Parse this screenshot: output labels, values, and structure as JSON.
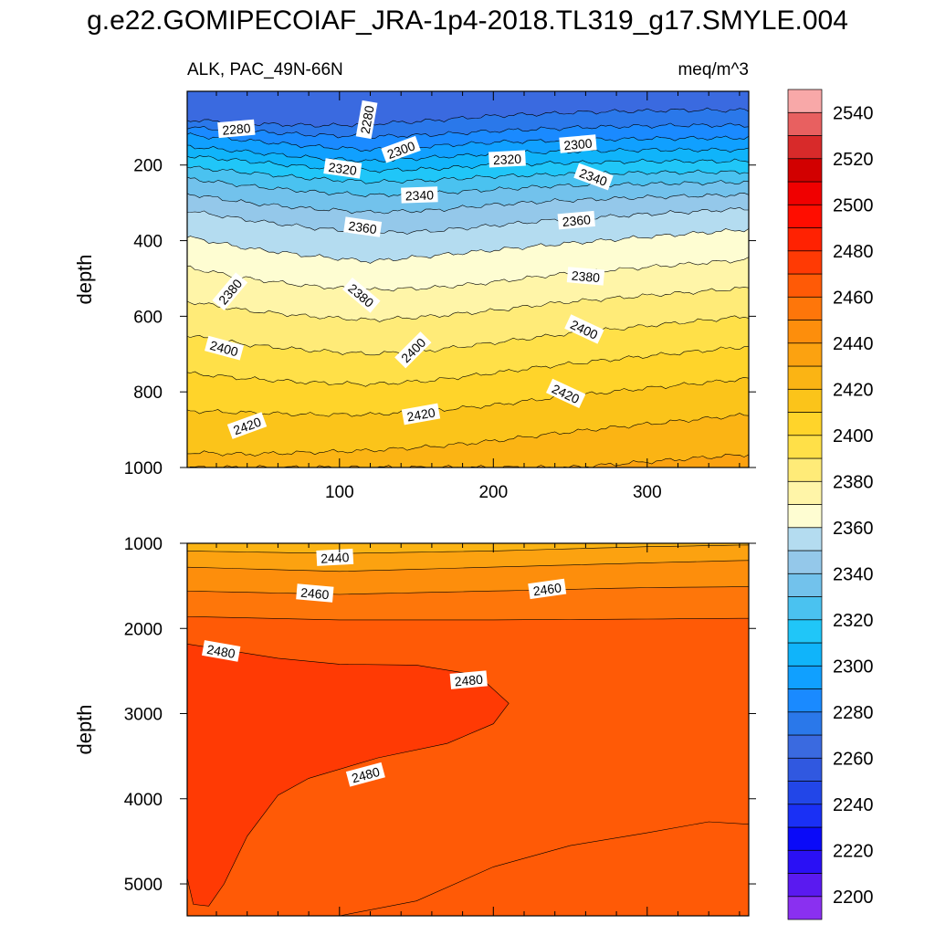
{
  "figure": {
    "title": "g.e22.GOMIPECOIAF_JRA-1p4-2018.TL319_g17.SMYLE.004",
    "left_subtitle": "ALK, PAC_49N-66N",
    "right_subtitle": "meq/m^3"
  },
  "chart_data": [
    {
      "type": "contour",
      "panel": "upper",
      "xlabel": "",
      "ylabel": "depth",
      "xlim": [
        1,
        366
      ],
      "ylim": [
        1000,
        5
      ],
      "y_reversed": true,
      "x_ticks": [
        100,
        200,
        300
      ],
      "y_ticks": [
        200,
        400,
        600,
        800,
        1000
      ],
      "contour_interval": 10,
      "isolines": [
        {
          "level": 2280,
          "depth_profile": [
            [
              0,
              80
            ],
            [
              40,
              90
            ],
            [
              80,
              95
            ],
            [
              100,
              95
            ],
            [
              150,
              85
            ],
            [
              200,
              70
            ],
            [
              260,
              60
            ],
            [
              320,
              55
            ],
            [
              366,
              55
            ]
          ]
        },
        {
          "level": 2290,
          "depth_profile": [
            [
              0,
              100
            ],
            [
              40,
              110
            ],
            [
              80,
              120
            ],
            [
              120,
              125
            ],
            [
              160,
              120
            ],
            [
              200,
              110
            ],
            [
              260,
              100
            ],
            [
              320,
              95
            ],
            [
              366,
              95
            ]
          ]
        },
        {
          "level": 2300,
          "depth_profile": [
            [
              0,
              120
            ],
            [
              40,
              135
            ],
            [
              80,
              150
            ],
            [
              120,
              160
            ],
            [
              160,
              150
            ],
            [
              200,
              140
            ],
            [
              240,
              135
            ],
            [
              300,
              130
            ],
            [
              366,
              128
            ]
          ]
        },
        {
          "level": 2310,
          "depth_profile": [
            [
              0,
              150
            ],
            [
              40,
              165
            ],
            [
              80,
              180
            ],
            [
              120,
              190
            ],
            [
              160,
              180
            ],
            [
              200,
              170
            ],
            [
              240,
              165
            ],
            [
              300,
              160
            ],
            [
              366,
              160
            ]
          ]
        },
        {
          "level": 2320,
          "depth_profile": [
            [
              0,
              175
            ],
            [
              40,
              190
            ],
            [
              80,
              205
            ],
            [
              120,
              215
            ],
            [
              160,
              210
            ],
            [
              200,
              200
            ],
            [
              240,
              195
            ],
            [
              300,
              190
            ],
            [
              366,
              190
            ]
          ]
        },
        {
          "level": 2330,
          "depth_profile": [
            [
              0,
              205
            ],
            [
              40,
              220
            ],
            [
              80,
              235
            ],
            [
              120,
              245
            ],
            [
              160,
              240
            ],
            [
              200,
              230
            ],
            [
              240,
              225
            ],
            [
              300,
              220
            ],
            [
              366,
              218
            ]
          ]
        },
        {
          "level": 2340,
          "depth_profile": [
            [
              0,
              235
            ],
            [
              40,
              255
            ],
            [
              80,
              270
            ],
            [
              120,
              280
            ],
            [
              160,
              275
            ],
            [
              200,
              265
            ],
            [
              240,
              255
            ],
            [
              300,
              250
            ],
            [
              366,
              245
            ]
          ]
        },
        {
          "level": 2350,
          "depth_profile": [
            [
              0,
              275
            ],
            [
              40,
              300
            ],
            [
              80,
              315
            ],
            [
              120,
              325
            ],
            [
              160,
              320
            ],
            [
              200,
              305
            ],
            [
              240,
              295
            ],
            [
              300,
              285
            ],
            [
              366,
              278
            ]
          ]
        },
        {
          "level": 2360,
          "depth_profile": [
            [
              0,
              320
            ],
            [
              40,
              345
            ],
            [
              80,
              365
            ],
            [
              120,
              380
            ],
            [
              160,
              375
            ],
            [
              200,
              360
            ],
            [
              240,
              345
            ],
            [
              300,
              330
            ],
            [
              366,
              315
            ]
          ]
        },
        {
          "level": 2370,
          "depth_profile": [
            [
              0,
              390
            ],
            [
              40,
              420
            ],
            [
              80,
              440
            ],
            [
              120,
              455
            ],
            [
              160,
              440
            ],
            [
              200,
              425
            ],
            [
              240,
              410
            ],
            [
              300,
              390
            ],
            [
              366,
              370
            ]
          ]
        },
        {
          "level": 2380,
          "depth_profile": [
            [
              0,
              470
            ],
            [
              40,
              500
            ],
            [
              80,
              520
            ],
            [
              120,
              530
            ],
            [
              160,
              525
            ],
            [
              200,
              510
            ],
            [
              240,
              490
            ],
            [
              300,
              470
            ],
            [
              366,
              450
            ]
          ]
        },
        {
          "level": 2390,
          "depth_profile": [
            [
              0,
              560
            ],
            [
              40,
              585
            ],
            [
              80,
              600
            ],
            [
              120,
              610
            ],
            [
              160,
              600
            ],
            [
              200,
              585
            ],
            [
              240,
              565
            ],
            [
              300,
              545
            ],
            [
              366,
              525
            ]
          ]
        },
        {
          "level": 2400,
          "depth_profile": [
            [
              0,
              650
            ],
            [
              40,
              675
            ],
            [
              80,
              690
            ],
            [
              120,
              700
            ],
            [
              160,
              690
            ],
            [
              200,
              670
            ],
            [
              240,
              650
            ],
            [
              300,
              625
            ],
            [
              366,
              600
            ]
          ]
        },
        {
          "level": 2410,
          "depth_profile": [
            [
              0,
              750
            ],
            [
              40,
              765
            ],
            [
              80,
              775
            ],
            [
              120,
              780
            ],
            [
              160,
              770
            ],
            [
              200,
              750
            ],
            [
              240,
              730
            ],
            [
              300,
              705
            ],
            [
              366,
              680
            ]
          ]
        },
        {
          "level": 2420,
          "depth_profile": [
            [
              0,
              850
            ],
            [
              40,
              855
            ],
            [
              80,
              860
            ],
            [
              120,
              860
            ],
            [
              160,
              850
            ],
            [
              200,
              835
            ],
            [
              240,
              815
            ],
            [
              300,
              790
            ],
            [
              366,
              765
            ]
          ]
        },
        {
          "level": 2430,
          "depth_profile": [
            [
              0,
              960
            ],
            [
              40,
              965
            ],
            [
              80,
              960
            ],
            [
              120,
              955
            ],
            [
              160,
              945
            ],
            [
              200,
              930
            ],
            [
              240,
              910
            ],
            [
              300,
              885
            ],
            [
              366,
              860
            ]
          ]
        },
        {
          "level": 2440,
          "depth_profile": [
            [
              250,
              1000
            ],
            [
              300,
              985
            ],
            [
              366,
              965
            ]
          ]
        }
      ],
      "contour_labels": [
        {
          "text": "2280",
          "x": 33,
          "y": 105,
          "angle": -5
        },
        {
          "text": "2280",
          "x": 118,
          "y": 80,
          "angle": -80
        },
        {
          "text": "2300",
          "x": 140,
          "y": 160,
          "angle": -20
        },
        {
          "text": "2300",
          "x": 255,
          "y": 145,
          "angle": -5
        },
        {
          "text": "2320",
          "x": 102,
          "y": 210,
          "angle": 8
        },
        {
          "text": "2320",
          "x": 209,
          "y": 185,
          "angle": -3
        },
        {
          "text": "2340",
          "x": 152,
          "y": 280,
          "angle": -2
        },
        {
          "text": "2340",
          "x": 265,
          "y": 232,
          "angle": 20
        },
        {
          "text": "2360",
          "x": 115,
          "y": 365,
          "angle": 8
        },
        {
          "text": "2360",
          "x": 254,
          "y": 347,
          "angle": -5
        },
        {
          "text": "2380",
          "x": 29,
          "y": 535,
          "angle": -50
        },
        {
          "text": "2380",
          "x": 114,
          "y": 545,
          "angle": 40
        },
        {
          "text": "2380",
          "x": 260,
          "y": 495,
          "angle": 5
        },
        {
          "text": "2400",
          "x": 25,
          "y": 685,
          "angle": 15
        },
        {
          "text": "2400",
          "x": 148,
          "y": 690,
          "angle": -45
        },
        {
          "text": "2400",
          "x": 259,
          "y": 635,
          "angle": 25
        },
        {
          "text": "2420",
          "x": 40,
          "y": 890,
          "angle": -20
        },
        {
          "text": "2420",
          "x": 153,
          "y": 860,
          "angle": -10
        },
        {
          "text": "2420",
          "x": 247,
          "y": 805,
          "angle": 25
        }
      ]
    },
    {
      "type": "contour",
      "panel": "lower",
      "xlabel": "",
      "ylabel": "depth",
      "xlim": [
        1,
        366
      ],
      "ylim": [
        5375,
        1000
      ],
      "y_reversed": true,
      "y_ticks": [
        1000,
        2000,
        3000,
        4000,
        5000
      ],
      "contour_interval": 10,
      "isolines": [
        {
          "level": 2440,
          "depth_profile": [
            [
              0,
              1090
            ],
            [
              100,
              1120
            ],
            [
              200,
              1090
            ],
            [
              300,
              1040
            ],
            [
              366,
              1020
            ]
          ]
        },
        {
          "level": 2450,
          "depth_profile": [
            [
              0,
              1280
            ],
            [
              100,
              1330
            ],
            [
              200,
              1280
            ],
            [
              300,
              1230
            ],
            [
              366,
              1200
            ]
          ]
        },
        {
          "level": 2460,
          "depth_profile": [
            [
              0,
              1560
            ],
            [
              100,
              1600
            ],
            [
              200,
              1560
            ],
            [
              300,
              1520
            ],
            [
              366,
              1510
            ]
          ]
        },
        {
          "level": 2470,
          "depth_profile": [
            [
              0,
              1860
            ],
            [
              100,
              1900
            ],
            [
              200,
              1900
            ],
            [
              300,
              1890
            ],
            [
              366,
              1880
            ]
          ]
        },
        {
          "level": 2480,
          "closed_region": [
            [
              0,
              2180
            ],
            [
              60,
              2350
            ],
            [
              100,
              2420
            ],
            [
              150,
              2430
            ],
            [
              190,
              2550
            ],
            [
              210,
              2880
            ],
            [
              200,
              3120
            ],
            [
              170,
              3350
            ],
            [
              125,
              3520
            ],
            [
              80,
              3760
            ],
            [
              60,
              3960
            ],
            [
              40,
              4440
            ],
            [
              25,
              5000
            ],
            [
              15,
              5260
            ],
            [
              5,
              5240
            ],
            [
              0,
              4850
            ]
          ]
        },
        {
          "level": 2470,
          "lower_boundary": [
            [
              100,
              5375
            ],
            [
              150,
              5200
            ],
            [
              200,
              4800
            ],
            [
              250,
              4550
            ],
            [
              300,
              4400
            ],
            [
              340,
              4270
            ],
            [
              366,
              4300
            ]
          ]
        }
      ],
      "contour_labels": [
        {
          "text": "2440",
          "x": 97,
          "y": 1170,
          "angle": -3
        },
        {
          "text": "2460",
          "x": 84,
          "y": 1590,
          "angle": 5
        },
        {
          "text": "2460",
          "x": 235,
          "y": 1540,
          "angle": -8
        },
        {
          "text": "2480",
          "x": 23,
          "y": 2270,
          "angle": 10
        },
        {
          "text": "2480",
          "x": 184,
          "y": 2610,
          "angle": -5
        },
        {
          "text": "2480",
          "x": 117,
          "y": 3720,
          "angle": -15
        }
      ]
    }
  ],
  "colorbar": {
    "levels": [
      2200,
      2210,
      2220,
      2230,
      2240,
      2250,
      2260,
      2270,
      2280,
      2290,
      2300,
      2310,
      2320,
      2330,
      2340,
      2350,
      2360,
      2370,
      2380,
      2390,
      2400,
      2410,
      2420,
      2430,
      2440,
      2450,
      2460,
      2470,
      2480,
      2490,
      2500,
      2510,
      2520,
      2530,
      2540,
      2550
    ],
    "labels": [
      "2200",
      "2220",
      "2240",
      "2260",
      "2280",
      "2300",
      "2320",
      "2340",
      "2360",
      "2380",
      "2400",
      "2420",
      "2440",
      "2460",
      "2480",
      "2500",
      "2520",
      "2540"
    ],
    "colors": [
      "#8a30f0",
      "#5a1af0",
      "#2a10f5",
      "#0a0af8",
      "#1a30f5",
      "#2246e8",
      "#3058e0",
      "#3a6ae0",
      "#2a78ea",
      "#1a8aff",
      "#10a0ff",
      "#10b4fa",
      "#20c6f8",
      "#4ac2f0",
      "#72c2ec",
      "#94c8ea",
      "#b4dcf0",
      "#fefdd2",
      "#fff5a8",
      "#ffeb78",
      "#ffe048",
      "#ffd42a",
      "#fbc41a",
      "#fbb414",
      "#fca210",
      "#fd8e0c",
      "#fe760a",
      "#ff5a06",
      "#ff3a04",
      "#ff2202",
      "#ff0d00",
      "#f00000",
      "#d20000",
      "#d82a2a",
      "#e86060",
      "#f8a8a8"
    ]
  }
}
